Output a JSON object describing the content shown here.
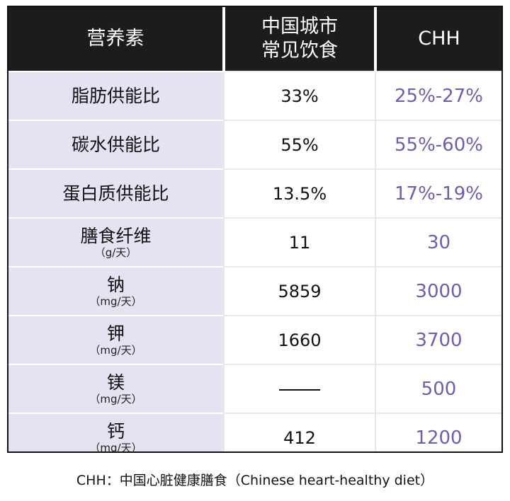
{
  "header": {
    "nutrient": "营养素",
    "current_line1": "中国城市",
    "current_line2": "常见饮食",
    "chh": "CHH"
  },
  "rows": [
    {
      "name": "脂肪供能比",
      "unit": "",
      "current": "33%",
      "chh": "25%-27%"
    },
    {
      "name": "碳水供能比",
      "unit": "",
      "current": "55%",
      "chh": "55%-60%"
    },
    {
      "name": "蛋白质供能比",
      "unit": "",
      "current": "13.5%",
      "chh": "17%-19%"
    },
    {
      "name": "膳食纤维",
      "unit": "（g/天）",
      "current": "11",
      "chh": "30"
    },
    {
      "name": "钠",
      "unit": "（mg/天）",
      "current": "5859",
      "chh": "3000"
    },
    {
      "name": "钾",
      "unit": "（mg/天）",
      "current": "1660",
      "chh": "3700"
    },
    {
      "name": "镁",
      "unit": "（mg/天）",
      "current": "",
      "chh": "500"
    },
    {
      "name": "钙",
      "unit": "（mg/天）",
      "current": "412",
      "chh": "1200"
    }
  ],
  "caption": "CHH：中国心脏健康膳食（Chinese heart-healthy diet）",
  "colors": {
    "header_bg": "#1c1c1c",
    "name_col_bg": "#e4e3f2",
    "chh_text": "#6b5fae"
  }
}
